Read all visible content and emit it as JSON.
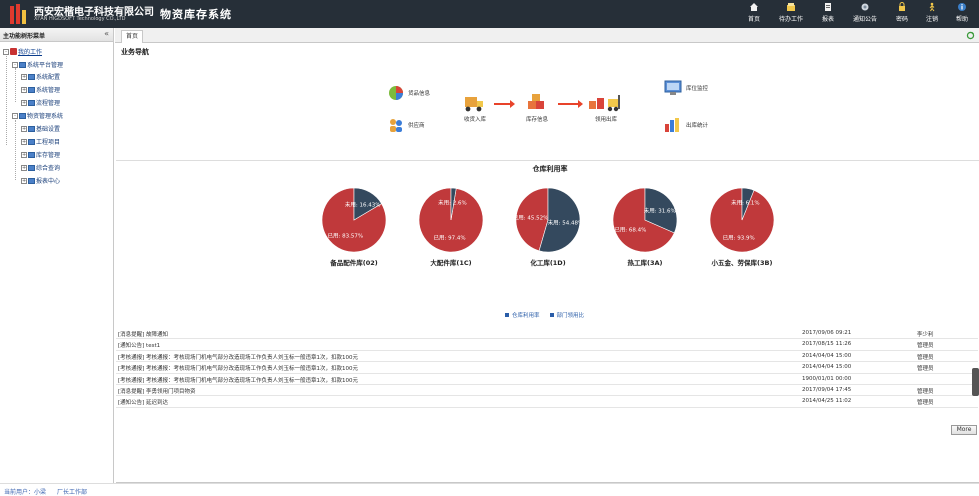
{
  "header": {
    "company_cn": "西安宏楷电子科技有限公司",
    "company_en": "XI'AN HIGDSOFT Technology CO.,LTD",
    "app_title": "物资库存系统",
    "nav": [
      {
        "label": "首页",
        "icon": "home-icon"
      },
      {
        "label": "待办工作",
        "icon": "todo-icon"
      },
      {
        "label": "报表",
        "icon": "report-icon"
      },
      {
        "label": "通知公告",
        "icon": "notice-icon"
      },
      {
        "label": "密码",
        "icon": "lock-icon"
      },
      {
        "label": "注销",
        "icon": "logout-icon"
      },
      {
        "label": "帮助",
        "icon": "help-icon"
      }
    ]
  },
  "sidebar": {
    "title": "主功能树形菜单",
    "collapse": "«",
    "root": "我的工作",
    "groups": [
      {
        "label": "系统平台管理",
        "children": [
          "系统配置",
          "系统管理",
          "流程管理"
        ]
      },
      {
        "label": "物资管理系统",
        "children": [
          "基础设置",
          "工程项目",
          "库存管理",
          "综合查询",
          "报表中心"
        ]
      }
    ]
  },
  "tabs": {
    "home": "首页"
  },
  "business": {
    "title": "业务导航",
    "items": {
      "goods": "货品信息",
      "supplier": "供应商",
      "receive": "收货入库",
      "stock": "库存信息",
      "issue": "领用出库",
      "location": "库位监控",
      "outbound": "出库统计"
    }
  },
  "chart_data": {
    "type": "pie",
    "title": "仓库利用率",
    "series_names": [
      "仓库利用率",
      "部门领用比"
    ],
    "colors": {
      "used": "#c0393b",
      "unused": "#34495e"
    },
    "charts": [
      {
        "name": "备品配件库(02)",
        "used_label": "已用",
        "unused_label": "未用",
        "used": 83.57,
        "unused": 16.43
      },
      {
        "name": "大配件库(1C)",
        "used_label": "已用",
        "unused_label": "未用",
        "used": 97.4,
        "unused": 2.6
      },
      {
        "name": "化工库(1D)",
        "used_label": "已用",
        "unused_label": "未用",
        "used": 45.52,
        "unused": 54.48
      },
      {
        "name": "热工库(3A)",
        "used_label": "已用",
        "unused_label": "未用",
        "used": 68.4,
        "unused": 31.6
      },
      {
        "name": "小五金、劳保库(3B)",
        "used_label": "已用",
        "unused_label": "未用",
        "used": 93.9,
        "unused": 6.1
      }
    ]
  },
  "messages": [
    {
      "text": "[消息提醒] 故障通知",
      "date": "2017/09/06 09:21",
      "user": "李少利"
    },
    {
      "text": "[通知公告] test1",
      "date": "2017/08/15 11:26",
      "user": "管理员"
    },
    {
      "text": "[考核通报] 考核通报：考核现场门机电气部分改造现场工作负责人刘玉标一般违章1次，扣款100元",
      "date": "2014/04/04 15:00",
      "user": "管理员"
    },
    {
      "text": "[考核通报] 考核通报：考核现场门机电气部分改造现场工作负责人刘玉标一般违章1次，扣款100元",
      "date": "2014/04/04 15:00",
      "user": "管理员"
    },
    {
      "text": "[考核通报] 考核通报：考核现场门机电气部分改造现场工作负责人刘玉标一般违章1次，扣款100元",
      "date": "1900/01/01 00:00",
      "user": ""
    },
    {
      "text": "[消息提醒] 李勇领用门项目物资",
      "date": "2017/09/04 17:45",
      "user": "管理员"
    },
    {
      "text": "[通知公告] 延迟到达",
      "date": "2014/04/25 11:02",
      "user": "管理员"
    }
  ],
  "more_label": "More",
  "status": {
    "user": "当前用户：小梁",
    "dept": "厂长工作部"
  }
}
